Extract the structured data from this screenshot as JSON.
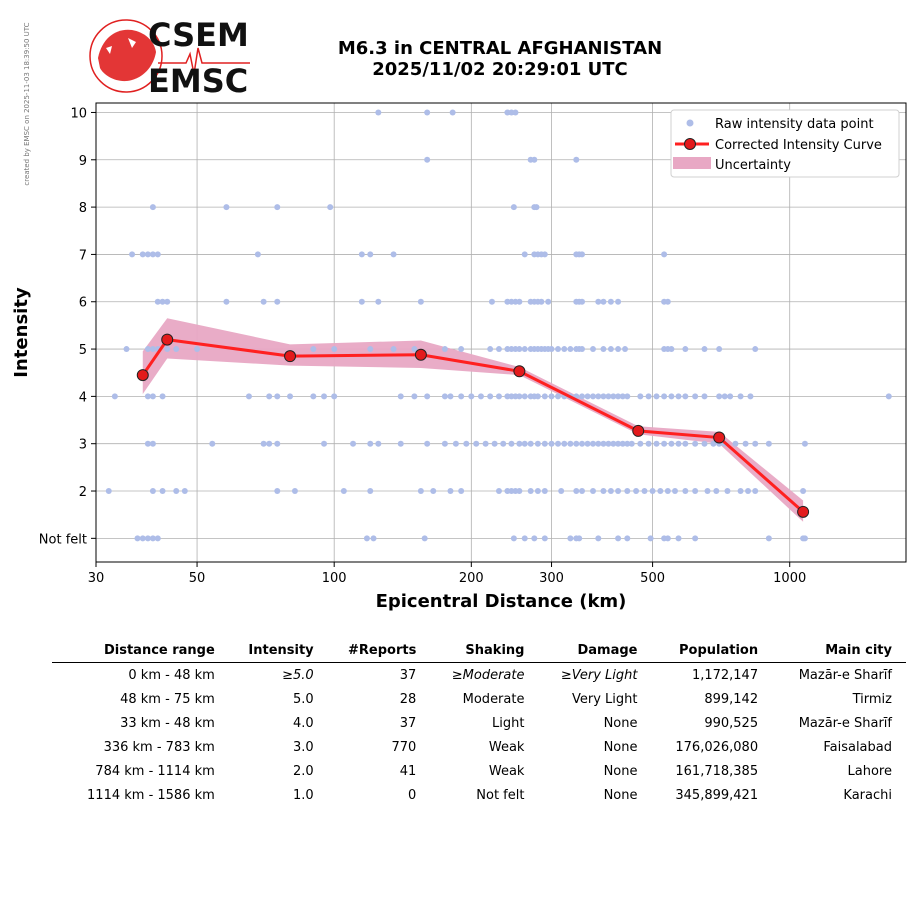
{
  "side_note": "created by EMSC on 2025-11-03 18:39:50 UTC",
  "logo": {
    "line1": "CSEM",
    "line2": "EMSC",
    "accent": "#e02020"
  },
  "title": {
    "line1": "M6.3 in CENTRAL AFGHANISTAN",
    "line2": "2025/11/02 20:29:01 UTC"
  },
  "chart_data": {
    "type": "scatter",
    "xlabel": "Epicentral Distance (km)",
    "ylabel": "Intensity",
    "xscale": "log",
    "xlim": [
      30,
      1800
    ],
    "ylim": [
      0.5,
      10.2
    ],
    "x_ticks": [
      30,
      50,
      100,
      200,
      300,
      500,
      1000
    ],
    "x_tick_labels": [
      "30",
      "50",
      "100",
      "200",
      "300",
      "500",
      "1000"
    ],
    "y_ticks": [
      1,
      2,
      3,
      4,
      5,
      6,
      7,
      8,
      9,
      10
    ],
    "y_tick_labels": [
      "Not felt",
      "2",
      "3",
      "4",
      "5",
      "6",
      "7",
      "8",
      "9",
      "10"
    ],
    "grid": true,
    "legend_position": "top-right",
    "colors": {
      "raw": "#aebde8",
      "curve": "#ff2020",
      "marker": "#e31a1c",
      "band": "#e8a8c4"
    },
    "legend": [
      "Raw intensity data point",
      "Corrected Intensity Curve",
      "Uncertainty"
    ],
    "curve": {
      "name": "Corrected Intensity Curve",
      "x": [
        38,
        43,
        80,
        155,
        255,
        465,
        700,
        1070
      ],
      "y": [
        4.45,
        5.2,
        4.85,
        4.88,
        4.53,
        3.27,
        3.13,
        1.56
      ]
    },
    "uncertainty": {
      "name": "Uncertainty",
      "x": [
        38,
        43,
        80,
        155,
        255,
        465,
        700,
        1070
      ],
      "lower": [
        4.05,
        4.8,
        4.65,
        4.6,
        4.45,
        3.2,
        3.0,
        1.35
      ],
      "upper": [
        4.95,
        5.65,
        5.1,
        5.18,
        4.62,
        3.37,
        3.25,
        1.8
      ]
    },
    "raw_points": [
      {
        "y": 10,
        "x": [
          125,
          160,
          182,
          240,
          245,
          250
        ]
      },
      {
        "y": 9,
        "x": [
          160,
          270,
          275,
          340
        ]
      },
      {
        "y": 8,
        "x": [
          40,
          58,
          75,
          98,
          248,
          275,
          278
        ]
      },
      {
        "y": 7,
        "x": [
          36,
          38,
          39,
          40,
          41,
          68,
          115,
          120,
          135,
          262,
          275,
          280,
          285,
          290,
          340,
          345,
          350,
          530
        ]
      },
      {
        "y": 6,
        "x": [
          41,
          42,
          43,
          58,
          70,
          75,
          115,
          125,
          155,
          222,
          240,
          245,
          250,
          255,
          270,
          275,
          280,
          285,
          295,
          340,
          345,
          350,
          380,
          390,
          405,
          420,
          530,
          540
        ]
      },
      {
        "y": 5,
        "x": [
          35,
          39,
          40,
          41,
          43,
          45,
          50,
          90,
          100,
          120,
          135,
          150,
          175,
          190,
          220,
          230,
          240,
          245,
          250,
          255,
          262,
          270,
          275,
          280,
          285,
          290,
          295,
          300,
          310,
          320,
          330,
          340,
          345,
          350,
          370,
          390,
          405,
          420,
          435,
          530,
          540,
          550,
          590,
          650,
          700,
          840
        ]
      },
      {
        "y": 4,
        "x": [
          33,
          39,
          40,
          42,
          65,
          72,
          75,
          80,
          90,
          95,
          100,
          140,
          150,
          160,
          175,
          180,
          190,
          200,
          210,
          220,
          230,
          240,
          245,
          250,
          255,
          262,
          270,
          275,
          280,
          290,
          300,
          310,
          320,
          330,
          340,
          350,
          360,
          370,
          380,
          390,
          400,
          410,
          420,
          430,
          440,
          470,
          490,
          510,
          530,
          550,
          570,
          590,
          620,
          650,
          700,
          720,
          740,
          780,
          820,
          1650
        ]
      },
      {
        "y": 3,
        "x": [
          39,
          40,
          54,
          70,
          72,
          75,
          95,
          110,
          120,
          125,
          140,
          160,
          175,
          185,
          195,
          205,
          215,
          225,
          235,
          245,
          255,
          262,
          270,
          280,
          290,
          300,
          310,
          320,
          330,
          340,
          350,
          360,
          370,
          380,
          390,
          400,
          410,
          420,
          430,
          440,
          450,
          470,
          490,
          510,
          530,
          550,
          570,
          590,
          620,
          650,
          680,
          700,
          720,
          760,
          800,
          840,
          900,
          1080
        ]
      },
      {
        "y": 2,
        "x": [
          32,
          40,
          42,
          45,
          47,
          75,
          82,
          105,
          120,
          155,
          165,
          180,
          190,
          230,
          240,
          245,
          250,
          255,
          270,
          280,
          290,
          315,
          340,
          350,
          370,
          390,
          405,
          420,
          440,
          460,
          480,
          500,
          520,
          540,
          560,
          590,
          620,
          660,
          690,
          730,
          780,
          810,
          840,
          1070
        ]
      },
      {
        "y": 1,
        "x": [
          37,
          38,
          39,
          40,
          41,
          118,
          122,
          158,
          248,
          262,
          275,
          290,
          330,
          340,
          345,
          380,
          420,
          440,
          495,
          530,
          540,
          570,
          620,
          900,
          1070,
          1080
        ]
      }
    ]
  },
  "table": {
    "headers": [
      "Distance range",
      "Intensity",
      "#Reports",
      "Shaking",
      "Damage",
      "Population",
      "Main city"
    ],
    "rows": [
      [
        "0 km -   48 km",
        "≥5.0",
        "37",
        "≥Moderate",
        "≥Very Light",
        "1,172,147",
        "Mazār-e Sharīf"
      ],
      [
        "48 km -   75 km",
        "5.0",
        "28",
        "Moderate",
        "Very Light",
        "899,142",
        "Tirmiz"
      ],
      [
        "33 km -   48 km",
        "4.0",
        "37",
        "Light",
        "None",
        "990,525",
        "Mazār-e Sharīf"
      ],
      [
        "336 km -  783 km",
        "3.0",
        "770",
        "Weak",
        "None",
        "176,026,080",
        "Faisalabad"
      ],
      [
        "784 km - 1114 km",
        "2.0",
        "41",
        "Weak",
        "None",
        "161,718,385",
        "Lahore"
      ],
      [
        "1114 km - 1586 km",
        "1.0",
        "0",
        "Not felt",
        "None",
        "345,899,421",
        "Karachi"
      ]
    ]
  }
}
